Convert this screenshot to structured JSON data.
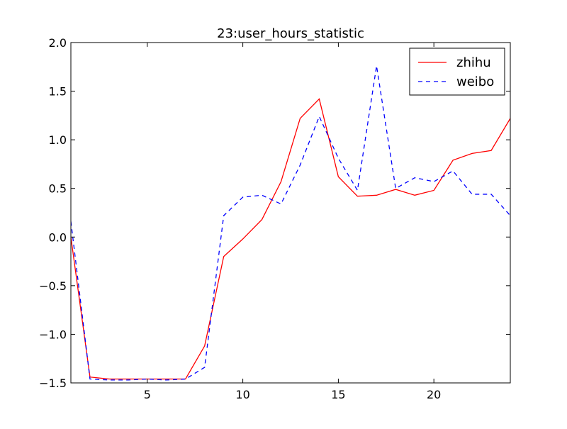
{
  "chart_data": {
    "type": "line",
    "title": "23:user_hours_statistic",
    "xlabel": "",
    "ylabel": "",
    "xlim": [
      1,
      24
    ],
    "ylim": [
      -1.5,
      2.0
    ],
    "x_ticks": [
      5,
      10,
      15,
      20
    ],
    "y_ticks": [
      -1.5,
      -1.0,
      -0.5,
      0.0,
      0.5,
      1.0,
      1.5,
      2.0
    ],
    "x_tick_labels": [
      "5",
      "10",
      "15",
      "20"
    ],
    "y_tick_labels": [
      "−1.5",
      "−1.0",
      "−0.5",
      "0.0",
      "0.5",
      "1.0",
      "1.5",
      "2.0"
    ],
    "grid": false,
    "legend_position": "top-right",
    "x": [
      1,
      2,
      3,
      4,
      5,
      6,
      7,
      8,
      9,
      10,
      11,
      12,
      13,
      14,
      15,
      16,
      17,
      18,
      19,
      20,
      21,
      22,
      23,
      24
    ],
    "series": [
      {
        "name": "zhihu",
        "color": "#ff0000",
        "style": "solid",
        "values": [
          0.0,
          -1.44,
          -1.46,
          -1.46,
          -1.46,
          -1.46,
          -1.46,
          -1.12,
          -0.2,
          -0.02,
          0.18,
          0.57,
          1.22,
          1.42,
          0.62,
          0.42,
          0.43,
          0.49,
          0.43,
          0.48,
          0.79,
          0.86,
          0.89,
          1.22
        ]
      },
      {
        "name": "weibo",
        "color": "#0000ff",
        "style": "dashed",
        "values": [
          0.16,
          -1.46,
          -1.47,
          -1.47,
          -1.46,
          -1.47,
          -1.46,
          -1.34,
          0.22,
          0.41,
          0.43,
          0.34,
          0.74,
          1.24,
          0.81,
          0.48,
          1.76,
          0.5,
          0.61,
          0.57,
          0.68,
          0.44,
          0.44,
          0.22
        ]
      }
    ]
  }
}
